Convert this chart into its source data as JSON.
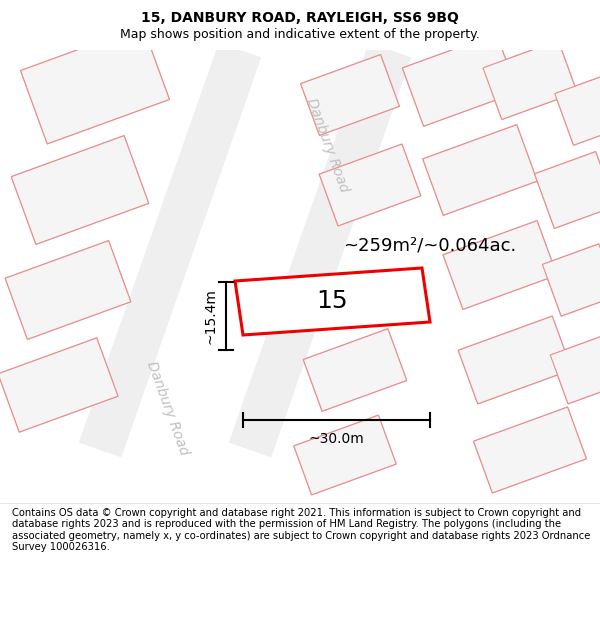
{
  "title_line1": "15, DANBURY ROAD, RAYLEIGH, SS6 9BQ",
  "title_line2": "Map shows position and indicative extent of the property.",
  "footer_text": "Contains OS data © Crown copyright and database right 2021. This information is subject to Crown copyright and database rights 2023 and is reproduced with the permission of HM Land Registry. The polygons (including the associated geometry, namely x, y co-ordinates) are subject to Crown copyright and database rights 2023 Ordnance Survey 100026316.",
  "label_15": "15",
  "area_label": "~259m²/~0.064ac.",
  "width_label": "~30.0m",
  "height_label": "~15.4m",
  "road_label_top": "Danbury Road",
  "road_label_bottom": "Danbury Road",
  "map_bg": "#f8f8f8",
  "building_fill": "#e2e2e2",
  "building_edge_gray": "#c8c8c8",
  "plot_fill": "#f5f5f5",
  "plot_edge_pink": "#f08888",
  "road_fill": "#efefef",
  "highlight_color": "#ee0000",
  "highlight_fill": "#ffffff",
  "title_fontsize": 10,
  "subtitle_fontsize": 9,
  "footer_fontsize": 7.2,
  "area_fontsize": 13,
  "label15_fontsize": 18,
  "dim_fontsize": 10,
  "road_label_fontsize": 10,
  "road_label_color": "#c0c0c0"
}
